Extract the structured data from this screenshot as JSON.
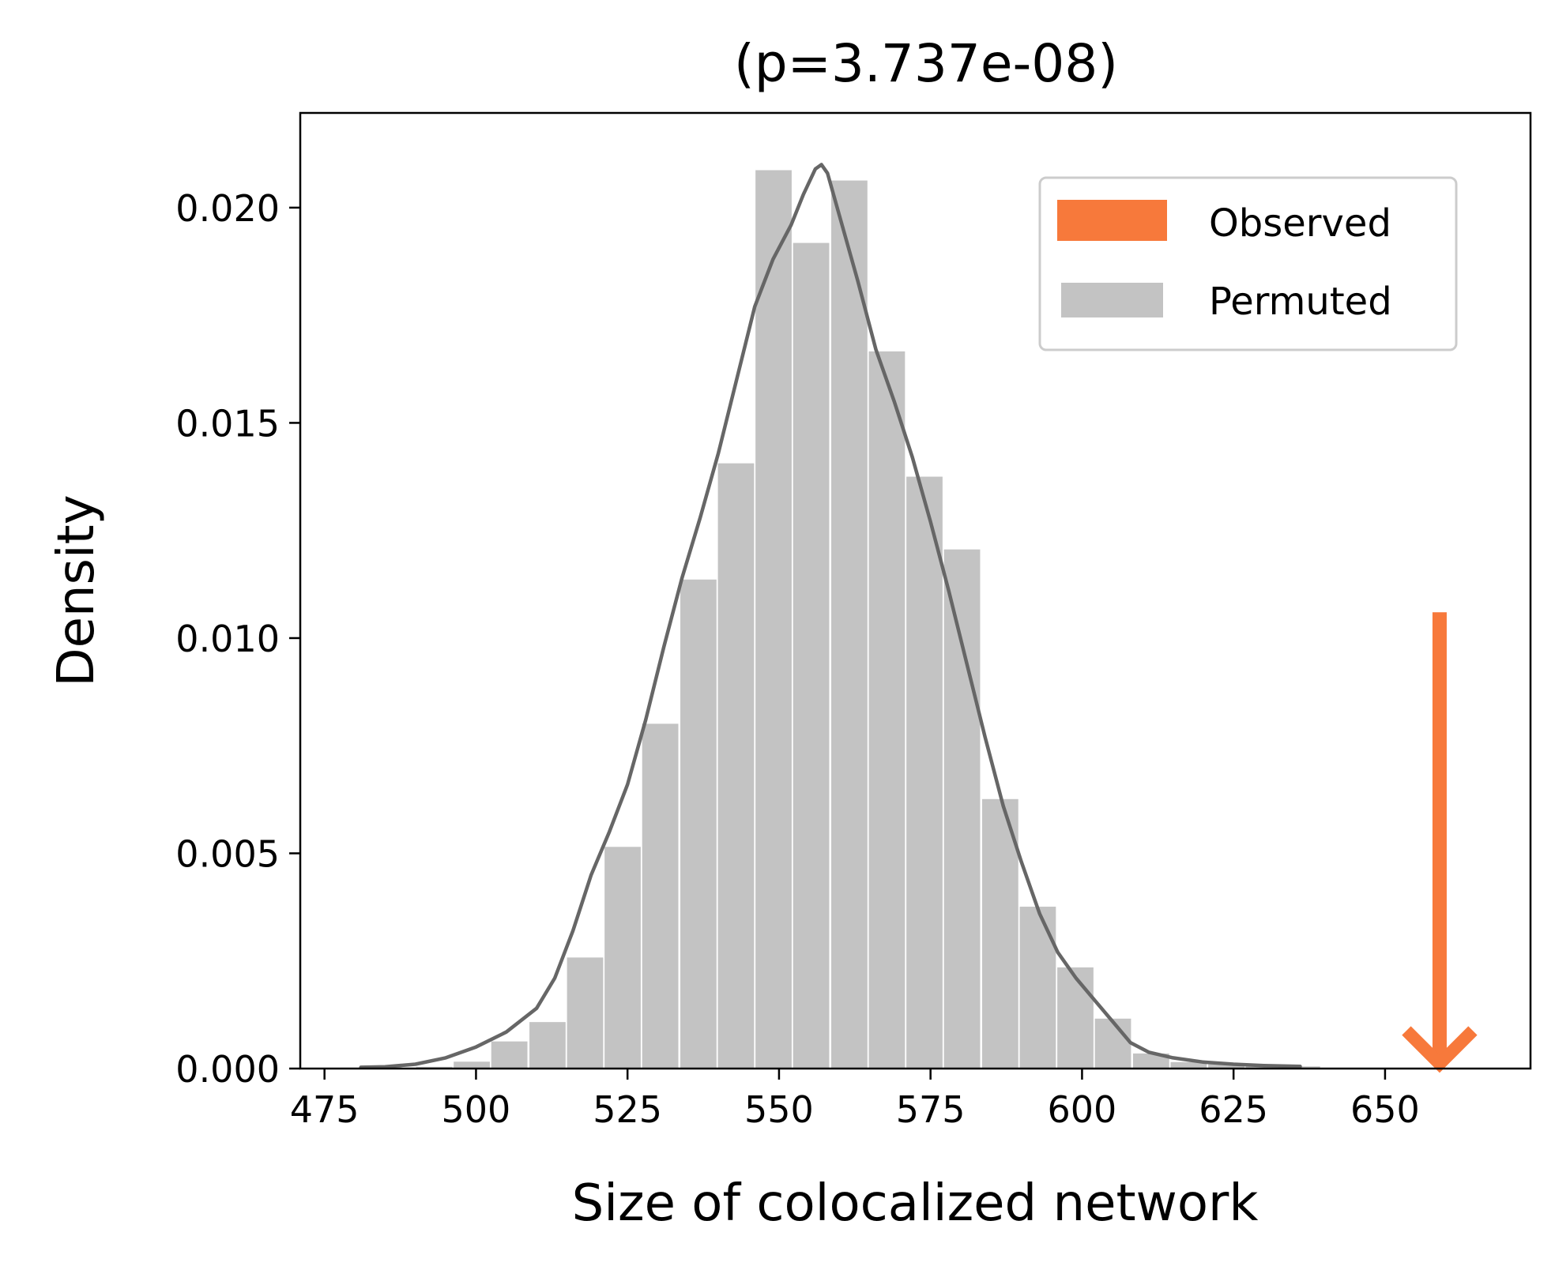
{
  "chart_data": {
    "type": "bar",
    "title": "(p=3.737e-08)",
    "xlabel": "Size of colocalized network",
    "ylabel": "Density",
    "xlim": [
      471,
      674
    ],
    "ylim": [
      0,
      0.0222
    ],
    "xticks": [
      475,
      500,
      525,
      550,
      575,
      600,
      625,
      650
    ],
    "yticks": [
      0.0,
      0.005,
      0.01,
      0.015,
      0.02
    ],
    "ytick_labels": [
      "0.000",
      "0.005",
      "0.010",
      "0.015",
      "0.020"
    ],
    "grid": false,
    "legend": {
      "placement": "top-right",
      "entries": [
        {
          "label": "Observed",
          "color": "#f7793b"
        },
        {
          "label": "Permuted",
          "color": "#c3c3c3"
        }
      ]
    },
    "series": [
      {
        "name": "Permuted",
        "kind": "histogram",
        "color": "#c3c3c3",
        "bin_width": 6.2,
        "bins": [
          {
            "x0": 477.5,
            "density": 2e-05
          },
          {
            "x0": 483.8,
            "density": 2e-05
          },
          {
            "x0": 490.0,
            "density": 4e-05
          },
          {
            "x0": 496.2,
            "density": 0.00016
          },
          {
            "x0": 502.4,
            "density": 0.00063
          },
          {
            "x0": 508.7,
            "density": 0.00108
          },
          {
            "x0": 514.9,
            "density": 0.00258
          },
          {
            "x0": 521.1,
            "density": 0.00515
          },
          {
            "x0": 527.3,
            "density": 0.00801
          },
          {
            "x0": 533.6,
            "density": 0.01136
          },
          {
            "x0": 539.8,
            "density": 0.01406
          },
          {
            "x0": 546.0,
            "density": 0.02087
          },
          {
            "x0": 552.2,
            "density": 0.01918
          },
          {
            "x0": 558.5,
            "density": 0.02063
          },
          {
            "x0": 564.7,
            "density": 0.01666
          },
          {
            "x0": 570.9,
            "density": 0.01375
          },
          {
            "x0": 577.1,
            "density": 0.01206
          },
          {
            "x0": 583.4,
            "density": 0.00626
          },
          {
            "x0": 589.6,
            "density": 0.00376
          },
          {
            "x0": 595.8,
            "density": 0.00235
          },
          {
            "x0": 602.0,
            "density": 0.00116
          },
          {
            "x0": 608.3,
            "density": 0.00035
          },
          {
            "x0": 614.5,
            "density": 0.00015
          },
          {
            "x0": 620.7,
            "density": 0.0001
          },
          {
            "x0": 626.9,
            "density": 8e-05
          },
          {
            "x0": 633.2,
            "density": 5e-05
          }
        ]
      },
      {
        "name": "KDE",
        "kind": "line",
        "color": "#666666",
        "points": [
          [
            481,
            3e-05
          ],
          [
            485,
            4e-05
          ],
          [
            490,
            0.0001
          ],
          [
            495,
            0.00025
          ],
          [
            500,
            0.0005
          ],
          [
            505,
            0.00085
          ],
          [
            510,
            0.0014
          ],
          [
            513,
            0.0021
          ],
          [
            516,
            0.0032
          ],
          [
            519,
            0.0045
          ],
          [
            522,
            0.0055
          ],
          [
            525,
            0.0066
          ],
          [
            528,
            0.0081
          ],
          [
            531,
            0.0098
          ],
          [
            534,
            0.0114
          ],
          [
            537,
            0.0128
          ],
          [
            540,
            0.0143
          ],
          [
            543,
            0.016
          ],
          [
            546,
            0.0177
          ],
          [
            549,
            0.0188
          ],
          [
            552,
            0.0196
          ],
          [
            554,
            0.0203
          ],
          [
            556,
            0.0209
          ],
          [
            557,
            0.021
          ],
          [
            558,
            0.0208
          ],
          [
            560,
            0.0198
          ],
          [
            563,
            0.0183
          ],
          [
            566,
            0.0167
          ],
          [
            569,
            0.0155
          ],
          [
            572,
            0.0142
          ],
          [
            575,
            0.0127
          ],
          [
            578,
            0.0111
          ],
          [
            581,
            0.0094
          ],
          [
            584,
            0.0077
          ],
          [
            587,
            0.0061
          ],
          [
            590,
            0.0048
          ],
          [
            593,
            0.0036
          ],
          [
            596,
            0.0027
          ],
          [
            599,
            0.0021
          ],
          [
            602,
            0.0016
          ],
          [
            605,
            0.0011
          ],
          [
            608,
            0.0006
          ],
          [
            611,
            0.00038
          ],
          [
            615,
            0.00025
          ],
          [
            620,
            0.00015
          ],
          [
            625,
            0.0001
          ],
          [
            630,
            7e-05
          ],
          [
            636,
            5e-05
          ]
        ]
      },
      {
        "name": "Observed",
        "kind": "arrow",
        "color": "#f7793b",
        "x": 659,
        "y_start": 0.0106,
        "y_end": 0.0
      }
    ]
  }
}
